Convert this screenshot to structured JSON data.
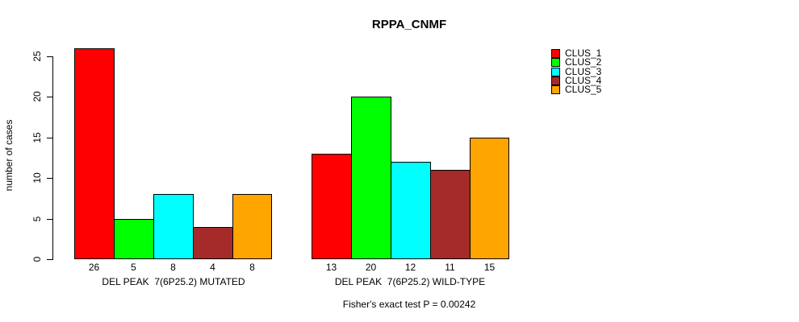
{
  "chart_data": {
    "type": "bar",
    "title": "RPPA_CNMF",
    "ylabel": "number of cases",
    "xlabel": "",
    "ylim": [
      0,
      26
    ],
    "yticks": [
      0,
      5,
      10,
      15,
      20,
      25
    ],
    "grid": false,
    "legend_position": "right-outside",
    "categories": [
      "DEL PEAK  7(6P25.2) MUTATED",
      "DEL PEAK  7(6P25.2) WILD-TYPE"
    ],
    "series": [
      {
        "name": "CLUS_1",
        "color": "#FF0000",
        "values": [
          26,
          13
        ]
      },
      {
        "name": "CLUS_2",
        "color": "#00FF00",
        "values": [
          5,
          20
        ]
      },
      {
        "name": "CLUS_3",
        "color": "#00FFFF",
        "values": [
          8,
          12
        ]
      },
      {
        "name": "CLUS_4",
        "color": "#A52A2A",
        "values": [
          4,
          11
        ]
      },
      {
        "name": "CLUS_5",
        "color": "#FFA500",
        "values": [
          8,
          15
        ]
      }
    ],
    "bar_value_labels_shown": true,
    "annotation": "Fisher's exact test P = 0.00242"
  }
}
